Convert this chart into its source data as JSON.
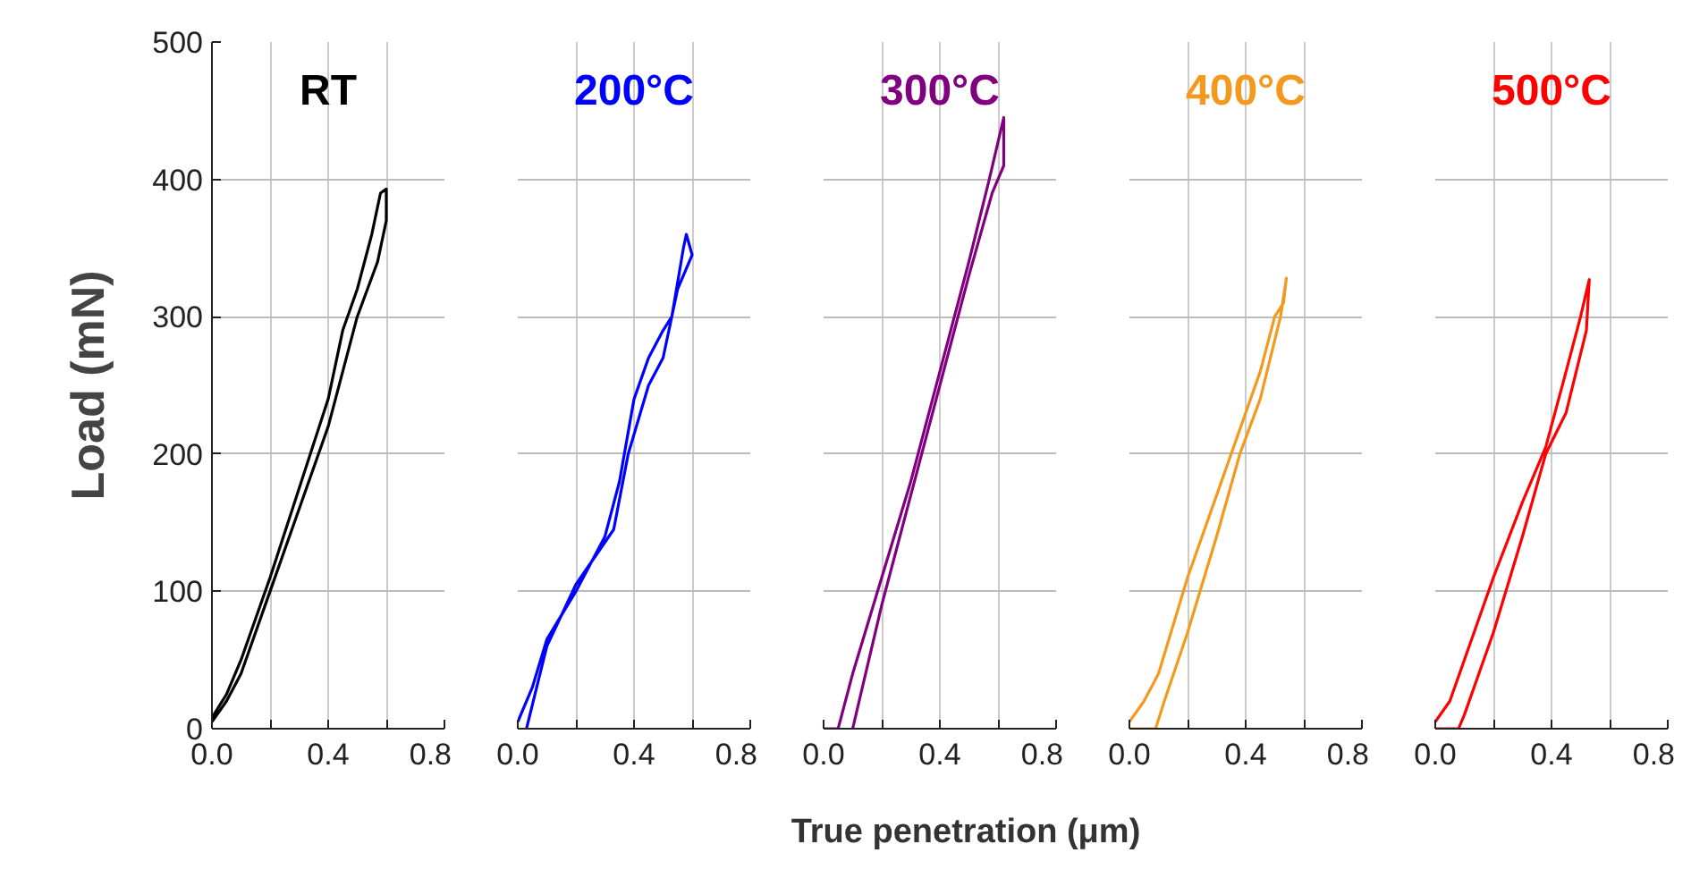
{
  "chart_data": [
    {
      "type": "line",
      "title": "RT",
      "ylabel": "Load (mN)",
      "xlim": [
        0,
        0.8
      ],
      "ylim": [
        0,
        500
      ],
      "xticks": [
        {
          "value": 0,
          "label": "0.0"
        },
        {
          "value": 0.2,
          "label": null
        },
        {
          "value": 0.4,
          "label": "0.4"
        },
        {
          "value": 0.6,
          "label": null
        },
        {
          "value": 0.8,
          "label": "0.8"
        }
      ],
      "yticks": [
        0,
        100,
        200,
        300,
        400,
        500
      ],
      "grid": true,
      "line_style": "solid",
      "marker": "none",
      "series": [
        {
          "color": "#000000",
          "x": [
            0.0,
            0.05,
            0.1,
            0.2,
            0.3,
            0.4,
            0.45,
            0.5,
            0.55,
            0.58,
            0.6,
            0.6,
            0.57,
            0.5,
            0.4,
            0.3,
            0.2,
            0.1,
            0.05,
            0.0
          ],
          "values": [
            8,
            25,
            50,
            110,
            175,
            240,
            290,
            320,
            360,
            390,
            393,
            370,
            340,
            300,
            220,
            160,
            100,
            40,
            20,
            5
          ]
        }
      ]
    },
    {
      "type": "line",
      "title": "200°C",
      "xlim": [
        0,
        0.8
      ],
      "ylim": [
        0,
        500
      ],
      "xticks": [
        {
          "value": 0,
          "label": "0.0"
        },
        {
          "value": 0.2,
          "label": null
        },
        {
          "value": 0.4,
          "label": "0.4"
        },
        {
          "value": 0.6,
          "label": null
        },
        {
          "value": 0.8,
          "label": "0.8"
        }
      ],
      "yticks": [
        0,
        100,
        200,
        300,
        400,
        500
      ],
      "grid": true,
      "tick_labels": "x",
      "line_style": "solid",
      "marker": "none",
      "series": [
        {
          "color": "#0000ff",
          "x": [
            0.0,
            0.05,
            0.1,
            0.2,
            0.3,
            0.35,
            0.4,
            0.45,
            0.5,
            0.53,
            0.57,
            0.58,
            0.6,
            0.55,
            0.5,
            0.45,
            0.38,
            0.33,
            0.2,
            0.1,
            0.03
          ],
          "values": [
            5,
            30,
            65,
            100,
            140,
            180,
            240,
            270,
            290,
            300,
            350,
            360,
            345,
            320,
            270,
            250,
            200,
            145,
            105,
            60,
            0
          ]
        }
      ]
    },
    {
      "type": "line",
      "title": "300°C",
      "xlabel": "True penetration (μm)",
      "xlim": [
        0,
        0.8
      ],
      "ylim": [
        0,
        500
      ],
      "xticks": [
        {
          "value": 0,
          "label": "0.0"
        },
        {
          "value": 0.2,
          "label": null
        },
        {
          "value": 0.4,
          "label": "0.4"
        },
        {
          "value": 0.6,
          "label": null
        },
        {
          "value": 0.8,
          "label": "0.8"
        }
      ],
      "yticks": [
        0,
        100,
        200,
        300,
        400,
        500
      ],
      "grid": true,
      "tick_labels": "x",
      "line_style": "solid",
      "marker": "none",
      "series": [
        {
          "color": "#800080",
          "x": [
            0.0,
            0.05,
            0.1,
            0.2,
            0.3,
            0.4,
            0.5,
            0.57,
            0.62,
            0.62,
            0.58,
            0.5,
            0.4,
            0.3,
            0.2,
            0.1
          ],
          "values": [
            0,
            0,
            40,
            110,
            180,
            260,
            340,
            400,
            445,
            410,
            390,
            330,
            250,
            170,
            90,
            0
          ]
        }
      ]
    },
    {
      "type": "line",
      "title": "400°C",
      "xlim": [
        0,
        0.8
      ],
      "ylim": [
        0,
        500
      ],
      "xticks": [
        {
          "value": 0,
          "label": "0.0"
        },
        {
          "value": 0.2,
          "label": null
        },
        {
          "value": 0.4,
          "label": "0.4"
        },
        {
          "value": 0.6,
          "label": null
        },
        {
          "value": 0.8,
          "label": "0.8"
        }
      ],
      "yticks": [
        0,
        100,
        200,
        300,
        400,
        500
      ],
      "grid": true,
      "tick_labels": "x",
      "line_style": "solid",
      "marker": "none",
      "series": [
        {
          "color": "#f39a1e",
          "x": [
            0.0,
            0.05,
            0.1,
            0.2,
            0.3,
            0.4,
            0.45,
            0.5,
            0.53,
            0.54,
            0.52,
            0.45,
            0.38,
            0.3,
            0.2,
            0.12,
            0.09,
            0.0
          ],
          "values": [
            5,
            20,
            40,
            110,
            170,
            230,
            260,
            300,
            310,
            328,
            300,
            240,
            200,
            140,
            70,
            20,
            0,
            0
          ]
        }
      ]
    },
    {
      "type": "line",
      "title": "500°C",
      "xlim": [
        0,
        0.8
      ],
      "ylim": [
        0,
        500
      ],
      "xticks": [
        {
          "value": 0,
          "label": "0.0"
        },
        {
          "value": 0.2,
          "label": null
        },
        {
          "value": 0.4,
          "label": "0.4"
        },
        {
          "value": 0.6,
          "label": null
        },
        {
          "value": 0.8,
          "label": "0.8"
        }
      ],
      "yticks": [
        0,
        100,
        200,
        300,
        400,
        500
      ],
      "grid": true,
      "tick_labels": "x",
      "line_style": "solid",
      "marker": "none",
      "series": [
        {
          "color": "#ff0000",
          "x": [
            0.0,
            0.05,
            0.1,
            0.2,
            0.3,
            0.38,
            0.45,
            0.5,
            0.53,
            0.52,
            0.45,
            0.38,
            0.3,
            0.2,
            0.1,
            0.08,
            0.0
          ],
          "values": [
            5,
            20,
            50,
            110,
            165,
            205,
            260,
            300,
            327,
            290,
            230,
            200,
            140,
            70,
            10,
            0,
            0
          ]
        }
      ]
    }
  ]
}
